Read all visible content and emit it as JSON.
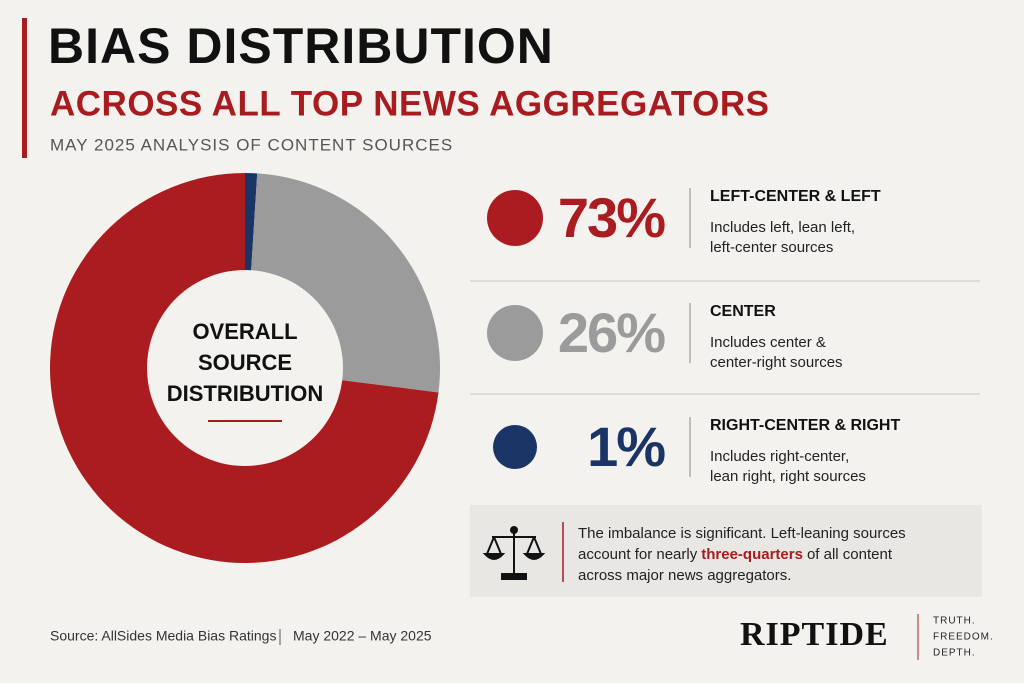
{
  "chart_data": {
    "type": "donut",
    "title": "BIAS DISTRIBUTION",
    "subtitle": "ACROSS ALL TOP NEWS AGGREGATORS",
    "caption": "MAY 2025 ANALYSIS OF CONTENT SOURCES",
    "center_label": [
      "OVERALL",
      "SOURCE",
      "DISTRIBUTION"
    ],
    "categories": [
      "LEFT-CENTER & LEFT",
      "CENTER",
      "RIGHT-CENTER & RIGHT"
    ],
    "values": [
      73,
      26,
      1
    ],
    "value_labels": [
      "73%",
      "26%",
      "1%"
    ],
    "colors": [
      "#ab1c20",
      "#9b9b9b",
      "#1b3466"
    ],
    "descriptions": [
      [
        "Includes left, lean left,",
        "left-center sources"
      ],
      [
        "Includes center &",
        "center-right sources"
      ],
      [
        "Includes right-center,",
        "lean right, right sources"
      ]
    ]
  },
  "callout": {
    "line1": "The imbalance is significant. Left-leaning sources",
    "line2_before": "account for nearly",
    "emphasis": "three-quarters",
    "line2_after": "of all content",
    "line3": "across major news aggregators."
  },
  "footer": {
    "source": "Source: AllSides Media Bias Ratings",
    "period": "May 2022 – May 2025",
    "brand": "RIPTIDE",
    "tagline": [
      "TRUTH.",
      "FREEDOM.",
      "DEPTH."
    ]
  }
}
